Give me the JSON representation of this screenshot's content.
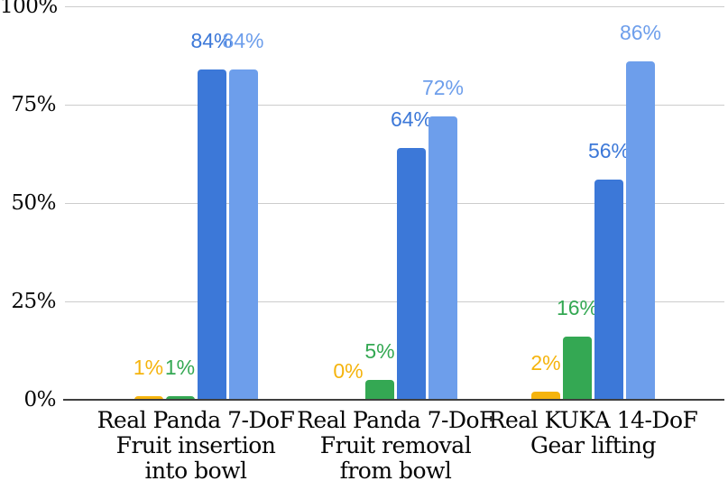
{
  "chart_data": {
    "type": "bar",
    "title": "",
    "categories": [
      [
        "Real Panda 7-DoF",
        "Fruit insertion",
        "into bowl"
      ],
      [
        "Real Panda 7-DoF",
        "Fruit removal",
        "from bowl"
      ],
      [
        "Real KUKA 14-DoF",
        "Gear lifting"
      ]
    ],
    "series": [
      {
        "color": "#F5B40E",
        "values": [
          1,
          0,
          2
        ],
        "value_labels": [
          "1%",
          "0%",
          "2%"
        ]
      },
      {
        "color": "#34A853",
        "values": [
          1,
          5,
          16
        ],
        "value_labels": [
          "1%",
          "5%",
          "16%"
        ]
      },
      {
        "color": "#3C78D8",
        "values": [
          84,
          64,
          56
        ],
        "value_labels": [
          "84%",
          "64%",
          "56%"
        ]
      },
      {
        "color": "#6D9EEB",
        "values": [
          84,
          72,
          86
        ],
        "value_labels": [
          "84%",
          "72%",
          "86%"
        ]
      }
    ],
    "y_axis": {
      "tick_labels": [
        "0%",
        "25%",
        "50%",
        "75%",
        "100%"
      ],
      "tick_values": [
        0,
        25,
        50,
        75,
        100
      ],
      "range": [
        0,
        100
      ]
    },
    "grid": true,
    "legend": "none",
    "annotations": "percentage value labels above each bar, colored to match series",
    "colors": {
      "gridline": "#cccccc",
      "axis_line": "#3f3f3f",
      "axis_text": "#050505"
    }
  }
}
